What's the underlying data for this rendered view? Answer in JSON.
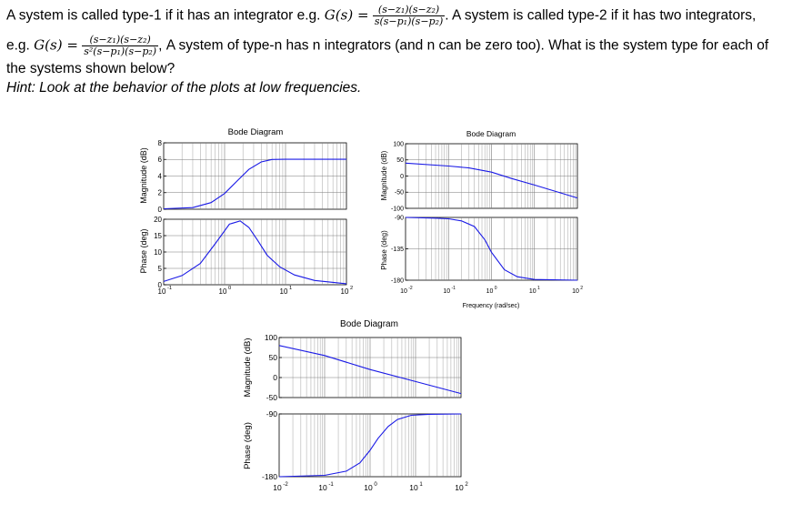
{
  "question": {
    "line1_a": "A system is called type-1 if it has an integrator e.g.",
    "g_label": "G(s) =",
    "frac1_num": "(s−z₁)(s−z₂)",
    "frac1_den": "s(s−p₁)(s−p₂)",
    "line1_b": ". A system is called type-2 if it has two integrators,",
    "line2_a": "e.g.",
    "frac2_num": "(s−z₁)(s−z₂)",
    "frac2_den": "s²(s−p₁)(s−p₂)",
    "line2_comma": ",",
    "line2_b": "A system of type-n has n integrators (and n can be zero too). What is the system type for each of",
    "line3": "the systems shown below?",
    "hint": "Hint: Look at the behavior of the plots at low frequencies."
  },
  "chart_data": [
    {
      "type": "line",
      "title": "Bode Diagram",
      "xlabel": "",
      "x_scale": "log",
      "x_ticks": [
        "10^-1",
        "10^0",
        "10^1",
        "10^2"
      ],
      "xlim": [
        0.1,
        100
      ],
      "magnitude": {
        "ylabel": "Magnitude (dB)",
        "ylim": [
          0,
          8
        ],
        "y_ticks": [
          "0",
          "2",
          "4",
          "6",
          "8"
        ],
        "series": [
          {
            "x": [
              0.1,
              0.3,
              0.6,
              1,
              1.6,
              2.5,
              4,
              6,
              10,
              20,
              40,
              100
            ],
            "y": [
              0.05,
              0.2,
              0.8,
              1.9,
              3.4,
              4.8,
              5.7,
              6.0,
              6.02,
              6.02,
              6.02,
              6.02
            ]
          }
        ]
      },
      "phase": {
        "ylabel": "Phase (deg)",
        "ylim": [
          0,
          20
        ],
        "y_ticks": [
          "0",
          "5",
          "10",
          "15",
          "20"
        ],
        "series": [
          {
            "x": [
              0.1,
              0.2,
              0.4,
              0.7,
              1.2,
              1.8,
              2.5,
              3.5,
              5,
              8,
              14,
              30,
              100
            ],
            "y": [
              1,
              2.8,
              6.5,
              12.5,
              18.5,
              19.5,
              17.5,
              13.5,
              9,
              5.5,
              3,
              1.3,
              0.3
            ]
          }
        ]
      }
    },
    {
      "type": "line",
      "title": "Bode Diagram",
      "xlabel": "Frequency (rad/sec)",
      "x_scale": "log",
      "x_ticks": [
        "10^-2",
        "10^-1",
        "10^0",
        "10^1",
        "10^2"
      ],
      "xlim": [
        0.01,
        100
      ],
      "magnitude": {
        "ylabel": "Magnitude (dB)",
        "ylim": [
          -100,
          100
        ],
        "y_ticks": [
          "-100",
          "-50",
          "0",
          "50",
          "100"
        ],
        "series": [
          {
            "x": [
              0.01,
              0.1,
              0.3,
              1,
              3,
              10,
              100
            ],
            "y": [
              40,
              31,
              25,
              12,
              -8,
              -28,
              -68
            ]
          }
        ]
      },
      "phase": {
        "ylabel": "Phase (deg)",
        "ylim": [
          -180,
          -90
        ],
        "y_ticks": [
          "-180",
          "-135",
          "-90"
        ],
        "series": [
          {
            "x": [
              0.01,
              0.05,
              0.1,
              0.2,
              0.4,
              0.7,
              1,
              2,
              4,
              10,
              100
            ],
            "y": [
              -90,
              -91,
              -92,
              -95,
              -103,
              -122,
              -140,
              -165,
              -175,
              -179,
              -180
            ]
          }
        ]
      }
    },
    {
      "type": "line",
      "title": "Bode Diagram",
      "xlabel": "",
      "x_scale": "log",
      "x_ticks": [
        "10^-2",
        "10^-1",
        "10^0",
        "10^1",
        "10^2"
      ],
      "xlim": [
        0.01,
        100
      ],
      "magnitude": {
        "ylabel": "Magnitude (dB)",
        "ylim": [
          -50,
          100
        ],
        "y_ticks": [
          "-50",
          "0",
          "50",
          "100"
        ],
        "series": [
          {
            "x": [
              0.01,
              0.1,
              1,
              10,
              100
            ],
            "y": [
              80,
              55,
              20,
              -10,
              -40
            ]
          }
        ]
      },
      "phase": {
        "ylabel": "Phase (deg)",
        "ylim": [
          -180,
          -90
        ],
        "y_ticks": [
          "-180",
          "-90"
        ],
        "series": [
          {
            "x": [
              0.01,
              0.1,
              0.3,
              0.6,
              1,
              1.5,
              2.5,
              4,
              8,
              20,
              100
            ],
            "y": [
              -180,
              -178,
              -172,
              -160,
              -142,
              -125,
              -108,
              -98,
              -92,
              -90.5,
              -90
            ]
          }
        ]
      }
    }
  ]
}
